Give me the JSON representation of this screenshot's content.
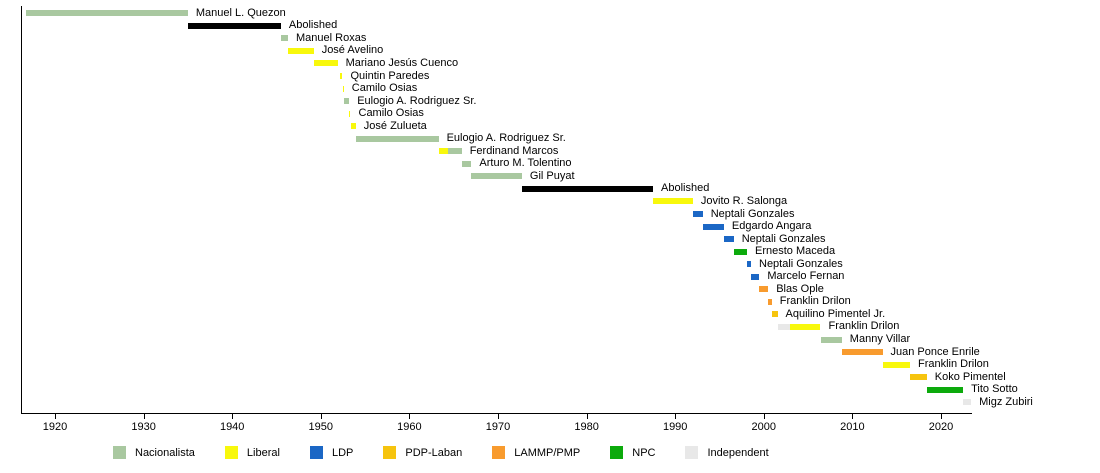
{
  "chart_data": {
    "type": "timeline",
    "axis": {
      "min": 1916.15,
      "max": 2023.5,
      "ticks": [
        1920,
        1930,
        1940,
        1950,
        1960,
        1970,
        1980,
        1990,
        2000,
        2010,
        2020
      ],
      "grid": false,
      "legend_position": "bottom"
    },
    "parties": {
      "nacionalista": {
        "label": "Nacionalista",
        "color": "#a9c8a0"
      },
      "liberal": {
        "label": "Liberal",
        "color": "#f8f80c"
      },
      "ldp": {
        "label": "LDP",
        "color": "#1b67c5"
      },
      "pdp": {
        "label": "PDP-Laban",
        "color": "#f6c40e"
      },
      "lammp": {
        "label": "LAMMP/PMP",
        "color": "#f89b2e"
      },
      "npc": {
        "label": "NPC",
        "color": "#0caa0c"
      },
      "independent": {
        "label": "Independent",
        "color": "#e8e8e8"
      },
      "abolished": {
        "label": "Abolished",
        "color": "#000000"
      }
    },
    "legend_order": [
      "nacionalista",
      "liberal",
      "ldp",
      "pdp",
      "lammp",
      "npc",
      "independent"
    ],
    "rows": [
      {
        "label": "Manuel L. Quezon",
        "segments": [
          {
            "party": "nacionalista",
            "start": 1916.7,
            "end": 1935.0
          }
        ]
      },
      {
        "label": "Abolished",
        "segments": [
          {
            "party": "abolished",
            "start": 1935.0,
            "end": 1945.5
          }
        ]
      },
      {
        "label": "Manuel Roxas",
        "segments": [
          {
            "party": "nacionalista",
            "start": 1945.5,
            "end": 1946.3
          }
        ]
      },
      {
        "label": "José Avelino",
        "segments": [
          {
            "party": "liberal",
            "start": 1946.3,
            "end": 1949.2
          }
        ]
      },
      {
        "label": "Mariano Jesús Cuenco",
        "segments": [
          {
            "party": "liberal",
            "start": 1949.2,
            "end": 1951.9
          }
        ]
      },
      {
        "label": "Quintin Paredes",
        "segments": [
          {
            "party": "liberal",
            "start": 1952.2,
            "end": 1952.45
          }
        ]
      },
      {
        "label": "Camilo Osias",
        "segments": [
          {
            "party": "liberal",
            "start": 1952.45,
            "end": 1952.6
          }
        ]
      },
      {
        "label": "Eulogio A. Rodriguez Sr.",
        "segments": [
          {
            "party": "nacionalista",
            "start": 1952.6,
            "end": 1953.2
          }
        ]
      },
      {
        "label": "Camilo Osias",
        "segments": [
          {
            "party": "liberal",
            "start": 1953.2,
            "end": 1953.35
          }
        ]
      },
      {
        "label": "José Zulueta",
        "segments": [
          {
            "party": "liberal",
            "start": 1953.35,
            "end": 1953.95
          }
        ]
      },
      {
        "label": "Eulogio A. Rodriguez Sr.",
        "segments": [
          {
            "party": "nacionalista",
            "start": 1953.95,
            "end": 1963.3
          }
        ]
      },
      {
        "label": "Ferdinand Marcos",
        "segments": [
          {
            "party": "liberal",
            "start": 1963.3,
            "end": 1964.4
          },
          {
            "party": "nacionalista",
            "start": 1964.4,
            "end": 1965.9
          }
        ]
      },
      {
        "label": "Arturo M. Tolentino",
        "segments": [
          {
            "party": "nacionalista",
            "start": 1965.9,
            "end": 1967.0
          }
        ]
      },
      {
        "label": "Gil Puyat",
        "segments": [
          {
            "party": "nacionalista",
            "start": 1967.0,
            "end": 1972.7
          }
        ]
      },
      {
        "label": "Abolished",
        "segments": [
          {
            "party": "abolished",
            "start": 1972.7,
            "end": 1987.5
          }
        ]
      },
      {
        "label": "Jovito R. Salonga",
        "segments": [
          {
            "party": "liberal",
            "start": 1987.5,
            "end": 1992.0
          }
        ]
      },
      {
        "label": "Neptali Gonzales",
        "segments": [
          {
            "party": "ldp",
            "start": 1992.0,
            "end": 1993.1
          }
        ]
      },
      {
        "label": "Edgardo Angara",
        "segments": [
          {
            "party": "ldp",
            "start": 1993.1,
            "end": 1995.5
          }
        ]
      },
      {
        "label": "Neptali Gonzales",
        "segments": [
          {
            "party": "ldp",
            "start": 1995.5,
            "end": 1996.6
          }
        ]
      },
      {
        "label": "Ernesto Maceda",
        "segments": [
          {
            "party": "npc",
            "start": 1996.6,
            "end": 1998.1
          }
        ]
      },
      {
        "label": "Neptali Gonzales",
        "segments": [
          {
            "party": "ldp",
            "start": 1998.1,
            "end": 1998.55
          }
        ]
      },
      {
        "label": "Marcelo Fernan",
        "segments": [
          {
            "party": "ldp",
            "start": 1998.55,
            "end": 1999.5
          }
        ]
      },
      {
        "label": "Blas Ople",
        "segments": [
          {
            "party": "lammp",
            "start": 1999.5,
            "end": 2000.5
          }
        ]
      },
      {
        "label": "Franklin Drilon",
        "segments": [
          {
            "party": "lammp",
            "start": 2000.5,
            "end": 2000.9
          }
        ]
      },
      {
        "label": "Aquilino Pimentel Jr.",
        "segments": [
          {
            "party": "pdp",
            "start": 2000.9,
            "end": 2001.55
          }
        ]
      },
      {
        "label": "Franklin Drilon",
        "segments": [
          {
            "party": "independent",
            "start": 2001.55,
            "end": 2003.0
          },
          {
            "party": "liberal",
            "start": 2003.0,
            "end": 2006.4
          }
        ]
      },
      {
        "label": "Manny Villar",
        "segments": [
          {
            "party": "nacionalista",
            "start": 2006.4,
            "end": 2008.8
          }
        ]
      },
      {
        "label": "Juan Ponce Enrile",
        "segments": [
          {
            "party": "lammp",
            "start": 2008.8,
            "end": 2013.4
          }
        ]
      },
      {
        "label": "Franklin Drilon",
        "segments": [
          {
            "party": "liberal",
            "start": 2013.4,
            "end": 2016.5
          }
        ]
      },
      {
        "label": "Koko Pimentel",
        "segments": [
          {
            "party": "pdp",
            "start": 2016.5,
            "end": 2018.4
          }
        ]
      },
      {
        "label": "Tito Sotto",
        "segments": [
          {
            "party": "npc",
            "start": 2018.4,
            "end": 2022.5
          }
        ]
      },
      {
        "label": "Migz Zubiri",
        "segments": [
          {
            "party": "independent",
            "start": 2022.5,
            "end": 2023.4
          }
        ]
      }
    ]
  }
}
